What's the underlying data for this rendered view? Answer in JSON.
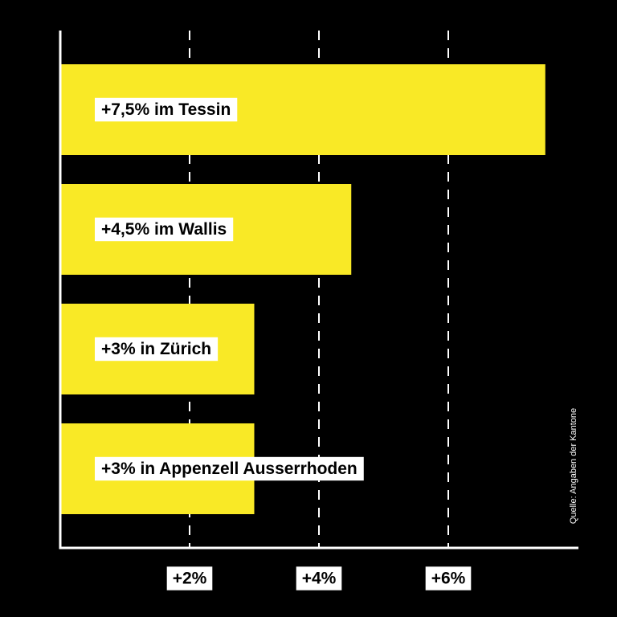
{
  "chart_data": {
    "type": "bar",
    "orientation": "horizontal",
    "categories": [
      "Tessin",
      "Wallis",
      "Zürich",
      "Appenzell Ausserrhoden"
    ],
    "values": [
      7.5,
      4.5,
      3,
      3
    ],
    "data_labels": [
      "+7,5% im Tessin",
      "+4,5% im Wallis",
      "+3% in Zürich",
      "+3% in Appenzell Ausserrhoden"
    ],
    "ticks": [
      2,
      4,
      6
    ],
    "tick_labels": [
      "+2%",
      "+4%",
      "+6%"
    ],
    "xlim": [
      0,
      8
    ],
    "grid": "vertical dashed",
    "title": "",
    "xlabel": "",
    "ylabel": "",
    "colors": {
      "background": "#000000",
      "bar": "#f9e926",
      "axis": "#ffffff",
      "grid": "#ffffff",
      "label_bg": "#ffffff",
      "label_text": "#000000"
    }
  },
  "source": "Quelle: Angaben der Kantone"
}
